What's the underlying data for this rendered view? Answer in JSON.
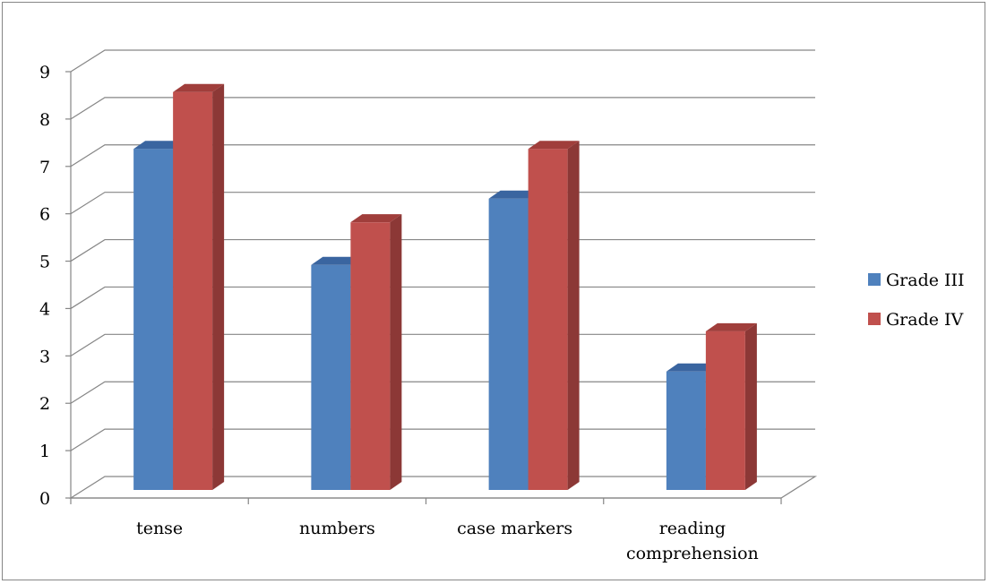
{
  "chart_data": {
    "type": "bar",
    "subtype": "3d-clustered-column",
    "title": "",
    "xlabel": "",
    "ylabel": "",
    "categories": [
      [
        "tense"
      ],
      [
        "numbers"
      ],
      [
        "case markers"
      ],
      [
        "reading",
        "comprehension"
      ]
    ],
    "series": [
      {
        "name": "Grade III",
        "values": [
          7.2,
          4.75,
          6.15,
          2.5
        ],
        "color": "#4F81BD",
        "side_color": "#385D8A",
        "top_color": "#3A65A0"
      },
      {
        "name": "Grade IV",
        "values": [
          8.4,
          5.65,
          7.2,
          3.35
        ],
        "color": "#C0504D",
        "side_color": "#8C3836",
        "top_color": "#A03E3B"
      }
    ],
    "ylim": [
      0,
      9
    ],
    "yticks": [
      0,
      1,
      2,
      3,
      4,
      5,
      6,
      7,
      8,
      9
    ],
    "grid": true,
    "legend_position": "right"
  }
}
